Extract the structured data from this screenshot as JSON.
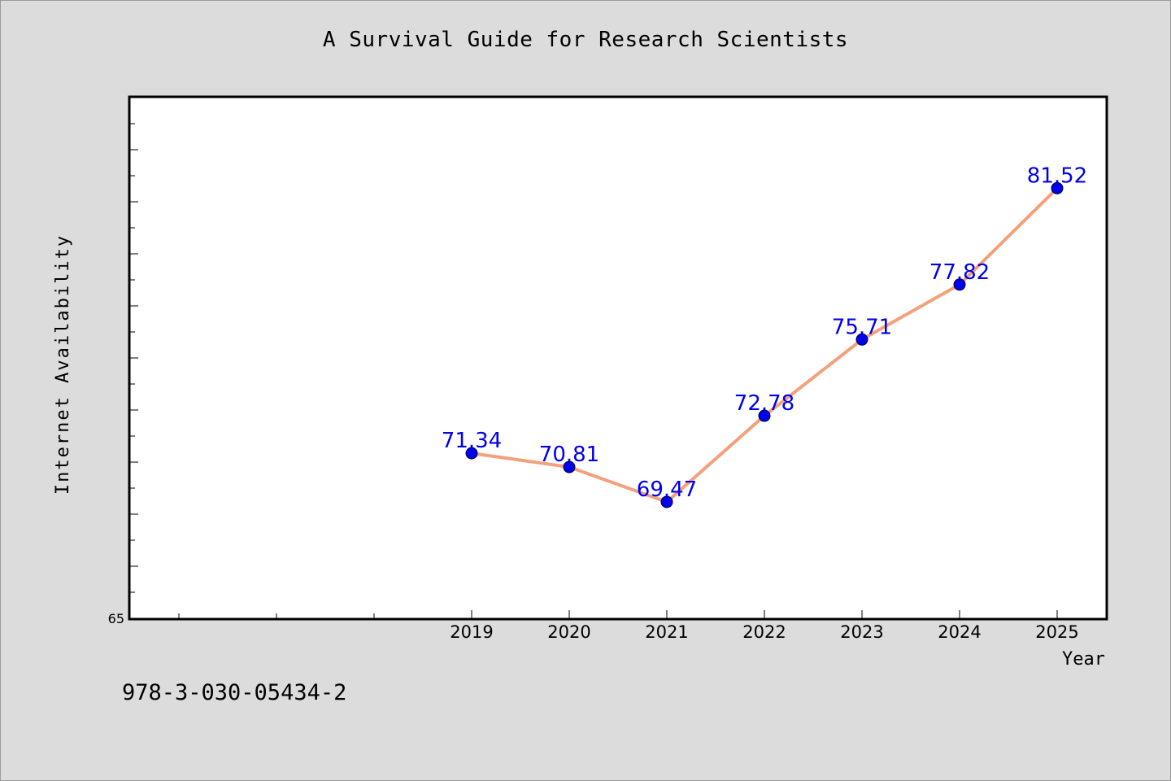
{
  "chart_data": {
    "type": "line",
    "title": "A Survival Guide for Research Scientists",
    "xlabel": "Year",
    "ylabel": "Internet Availability",
    "x": [
      "2019",
      "2020",
      "2021",
      "2022",
      "2023",
      "2024",
      "2025"
    ],
    "x_numeric": [
      2019,
      2020,
      2021,
      2022,
      2023,
      2024,
      2025
    ],
    "xlim": [
      2015.5,
      2025.5
    ],
    "series": [
      {
        "values": [
          71.34,
          70.81,
          69.47,
          72.78,
          75.71,
          77.82,
          81.52
        ],
        "data_labels": [
          "71.34",
          "70.81",
          "69.47",
          "72.78",
          "75.71",
          "77.82",
          "81.52"
        ],
        "line_color": "#f4a07a",
        "marker_color": "#0000ee"
      }
    ],
    "ylim": [
      65,
      85
    ],
    "y_tick_labels": [
      "65"
    ],
    "data_label_color": "#0000ee",
    "grid": false,
    "legend": "none"
  },
  "footer": {
    "isbn": "978-3-030-05434-2"
  }
}
